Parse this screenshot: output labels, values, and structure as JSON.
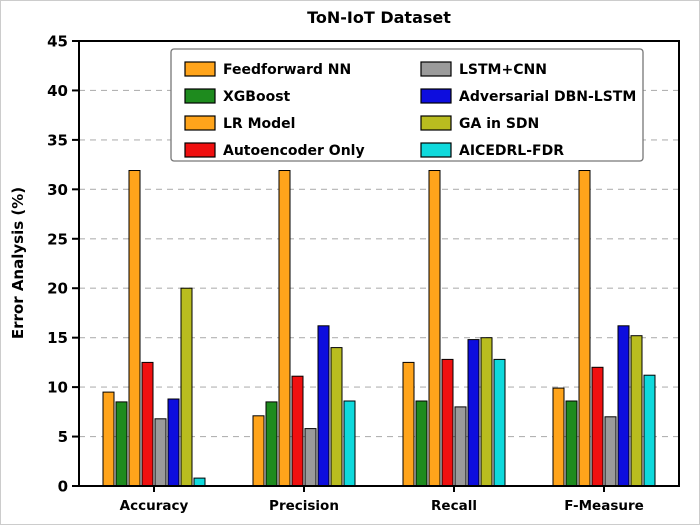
{
  "chart_data": {
    "type": "bar",
    "title": "ToN-IoT Dataset",
    "xlabel": "",
    "ylabel": "Error Analysis (%)",
    "categories": [
      "Accuracy",
      "Precision",
      "Recall",
      "F-Measure"
    ],
    "ylim": [
      0,
      45
    ],
    "yticks": [
      0,
      5,
      10,
      15,
      20,
      25,
      30,
      35,
      40,
      45
    ],
    "grid": "horizontal-dashed",
    "legend_position": "upper-center-inside",
    "legend_columns": 2,
    "series": [
      {
        "name": "Feedforward NN",
        "color": "#FFA41B",
        "values": [
          9.5,
          7.1,
          12.5,
          9.9
        ]
      },
      {
        "name": "XGBoost",
        "color": "#1E8B1E",
        "values": [
          8.5,
          8.5,
          8.6,
          8.6
        ]
      },
      {
        "name": "LR Model",
        "color": "#FFA41B",
        "values": [
          31.9,
          31.9,
          31.9,
          31.9
        ]
      },
      {
        "name": "Autoencoder Only",
        "color": "#F01010",
        "values": [
          12.5,
          11.1,
          12.8,
          12.0
        ]
      },
      {
        "name": "LSTM+CNN",
        "color": "#9B9B9B",
        "values": [
          6.8,
          5.8,
          8.0,
          7.0
        ]
      },
      {
        "name": "Adversarial DBN-LSTM",
        "color": "#0D0DDE",
        "values": [
          8.8,
          16.2,
          14.8,
          16.2
        ]
      },
      {
        "name": "GA in SDN",
        "color": "#B9BC1F",
        "values": [
          20.0,
          14.0,
          15.0,
          15.2
        ]
      },
      {
        "name": "AICEDRL-FDR",
        "color": "#0FD9DC",
        "values": [
          0.8,
          8.6,
          12.8,
          11.2
        ]
      }
    ]
  }
}
